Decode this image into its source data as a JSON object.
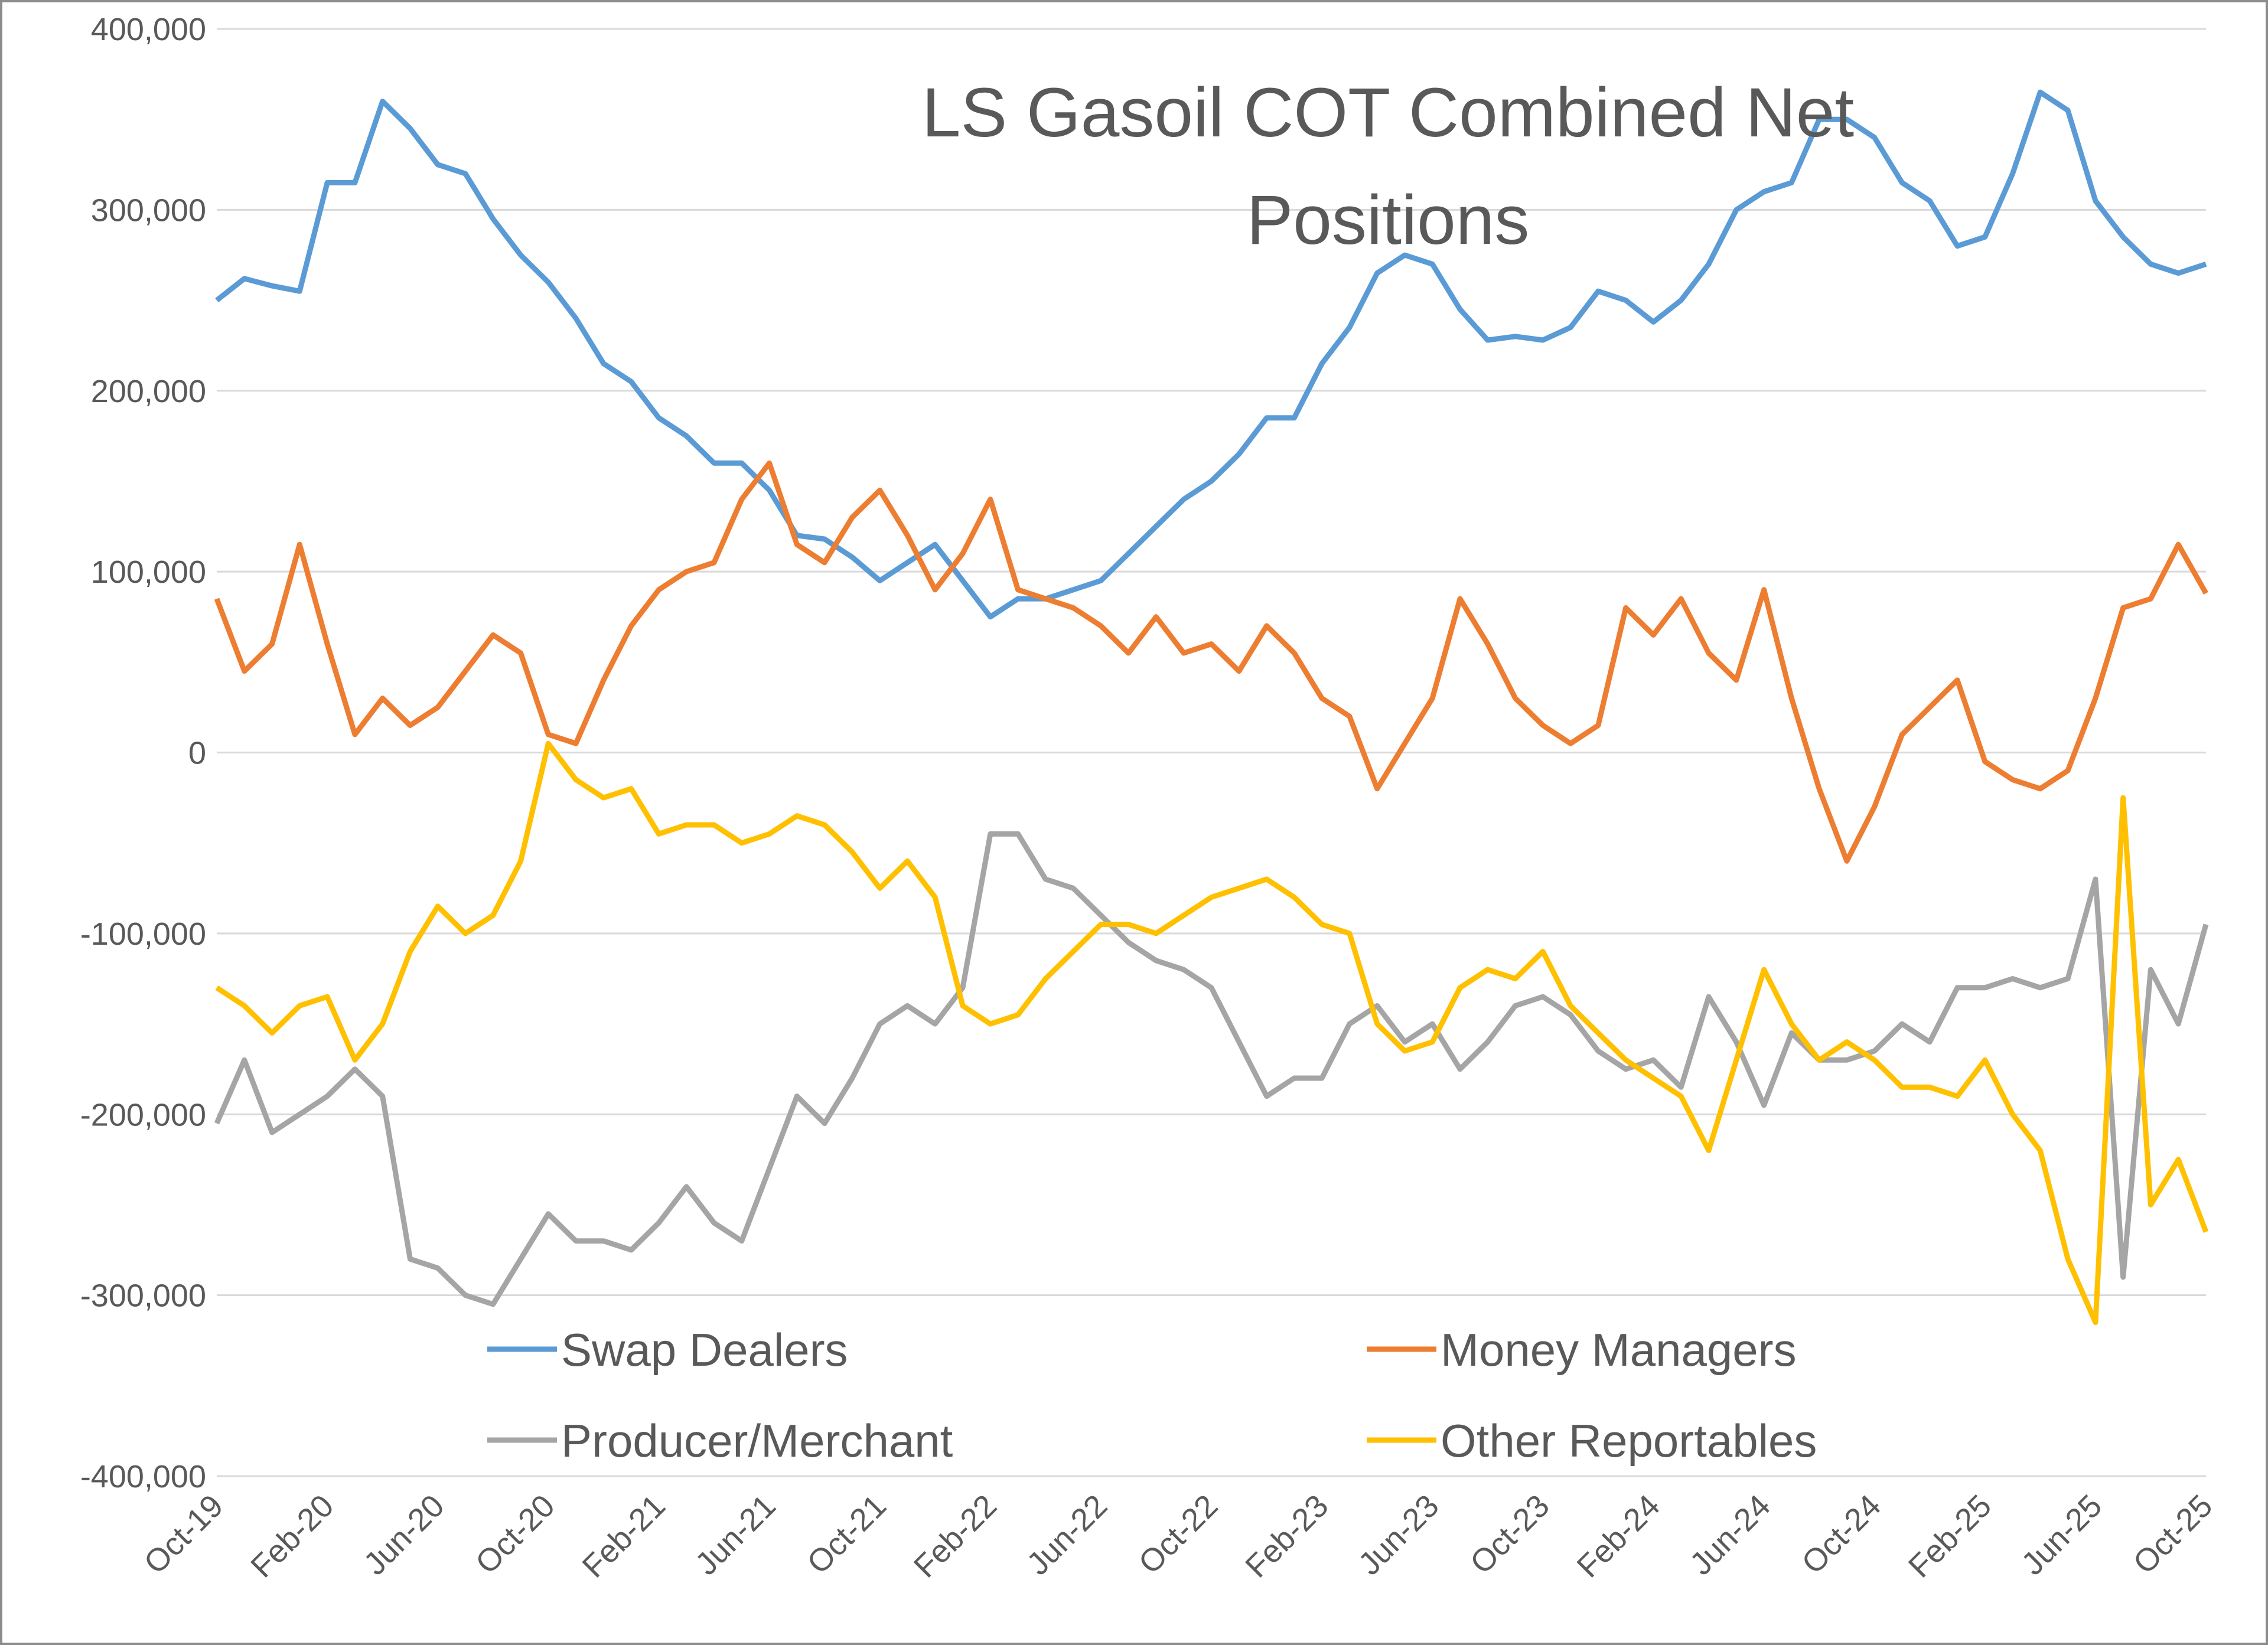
{
  "chart_data": {
    "type": "line",
    "title": "LS Gasoil COT Combined Net Positions",
    "categories": [
      "Oct-19",
      null,
      null,
      null,
      "Feb-20",
      null,
      null,
      null,
      "Jun-20",
      null,
      null,
      null,
      "Oct-20",
      null,
      null,
      null,
      "Feb-21",
      null,
      null,
      null,
      "Jun-21",
      null,
      null,
      null,
      "Oct-21",
      null,
      null,
      null,
      "Feb-22",
      null,
      null,
      null,
      "Jun-22",
      null,
      null,
      null,
      "Oct-22",
      null,
      null,
      null,
      "Feb-23",
      null,
      null,
      null,
      "Jun-23",
      null,
      null,
      null,
      "Oct-23",
      null,
      null,
      null,
      "Feb-24",
      null,
      null,
      null,
      "Jun-24",
      null,
      null,
      null,
      "Oct-24",
      null,
      null,
      null,
      "Feb-25",
      null,
      null,
      null,
      "Jun-25",
      null,
      null,
      null,
      "Oct-25"
    ],
    "series": [
      {
        "name": "Swap Dealers",
        "color": "#5b9bd5",
        "values": [
          250000,
          262000,
          258000,
          255000,
          315000,
          315000,
          360000,
          345000,
          325000,
          320000,
          295000,
          275000,
          260000,
          240000,
          215000,
          205000,
          185000,
          175000,
          160000,
          160000,
          145000,
          120000,
          118000,
          108000,
          95000,
          105000,
          115000,
          95000,
          75000,
          85000,
          85000,
          90000,
          95000,
          110000,
          125000,
          140000,
          150000,
          165000,
          185000,
          185000,
          215000,
          235000,
          265000,
          275000,
          270000,
          245000,
          228000,
          230000,
          228000,
          235000,
          255000,
          250000,
          238000,
          250000,
          270000,
          300000,
          310000,
          315000,
          350000,
          350000,
          340000,
          315000,
          305000,
          280000,
          285000,
          320000,
          365000,
          355000,
          305000,
          285000,
          270000,
          265000,
          270000
        ]
      },
      {
        "name": "Money Managers",
        "color": "#ed7d31",
        "values": [
          85000,
          45000,
          60000,
          115000,
          60000,
          10000,
          30000,
          15000,
          25000,
          45000,
          65000,
          55000,
          10000,
          5000,
          40000,
          70000,
          90000,
          100000,
          105000,
          140000,
          160000,
          115000,
          105000,
          130000,
          145000,
          120000,
          90000,
          110000,
          140000,
          90000,
          85000,
          80000,
          70000,
          55000,
          75000,
          55000,
          60000,
          45000,
          70000,
          55000,
          30000,
          20000,
          -20000,
          5000,
          30000,
          85000,
          60000,
          30000,
          15000,
          5000,
          15000,
          80000,
          65000,
          85000,
          55000,
          40000,
          90000,
          30000,
          -20000,
          -60000,
          -30000,
          10000,
          25000,
          40000,
          -5000,
          -15000,
          -20000,
          -10000,
          30000,
          80000,
          85000,
          115000,
          88000
        ]
      },
      {
        "name": "Producer/Merchant",
        "color": "#a5a5a5",
        "values": [
          -205000,
          -170000,
          -210000,
          -200000,
          -190000,
          -175000,
          -190000,
          -280000,
          -285000,
          -300000,
          -305000,
          -280000,
          -255000,
          -270000,
          -270000,
          -275000,
          -260000,
          -240000,
          -260000,
          -270000,
          -230000,
          -190000,
          -205000,
          -180000,
          -150000,
          -140000,
          -150000,
          -130000,
          -45000,
          -45000,
          -70000,
          -75000,
          -90000,
          -105000,
          -115000,
          -120000,
          -130000,
          -160000,
          -190000,
          -180000,
          -180000,
          -150000,
          -140000,
          -160000,
          -150000,
          -175000,
          -160000,
          -140000,
          -135000,
          -145000,
          -165000,
          -175000,
          -170000,
          -185000,
          -135000,
          -160000,
          -195000,
          -155000,
          -170000,
          -170000,
          -165000,
          -150000,
          -160000,
          -130000,
          -130000,
          -125000,
          -130000,
          -125000,
          -70000,
          -290000,
          -120000,
          -150000,
          -95000
        ]
      },
      {
        "name": "Other Reportables",
        "color": "#ffc000",
        "values": [
          -130000,
          -140000,
          -155000,
          -140000,
          -135000,
          -170000,
          -150000,
          -110000,
          -85000,
          -100000,
          -90000,
          -60000,
          5000,
          -15000,
          -25000,
          -20000,
          -45000,
          -40000,
          -40000,
          -50000,
          -45000,
          -35000,
          -40000,
          -55000,
          -75000,
          -60000,
          -80000,
          -140000,
          -150000,
          -145000,
          -125000,
          -110000,
          -95000,
          -95000,
          -100000,
          -90000,
          -80000,
          -75000,
          -70000,
          -80000,
          -95000,
          -100000,
          -150000,
          -165000,
          -160000,
          -130000,
          -120000,
          -125000,
          -110000,
          -140000,
          -155000,
          -170000,
          -180000,
          -190000,
          -220000,
          -170000,
          -120000,
          -150000,
          -170000,
          -160000,
          -170000,
          -185000,
          -185000,
          -190000,
          -170000,
          -200000,
          -220000,
          -280000,
          -315000,
          -25000,
          -250000,
          -225000,
          -265000
        ]
      }
    ],
    "ylim": [
      -400000,
      400000
    ],
    "yticks": [
      {
        "value": -400000,
        "label": "-400,000"
      },
      {
        "value": -300000,
        "label": "-300,000"
      },
      {
        "value": -200000,
        "label": "-200,000"
      },
      {
        "value": -100000,
        "label": "-100,000"
      },
      0,
      {
        "value": 100000,
        "label": "100,000"
      },
      {
        "value": 200000,
        "label": "200,000"
      },
      {
        "value": 300000,
        "label": "300,000"
      },
      {
        "value": 400000,
        "label": "400,000"
      }
    ],
    "grid": true,
    "legend": "lower center"
  }
}
